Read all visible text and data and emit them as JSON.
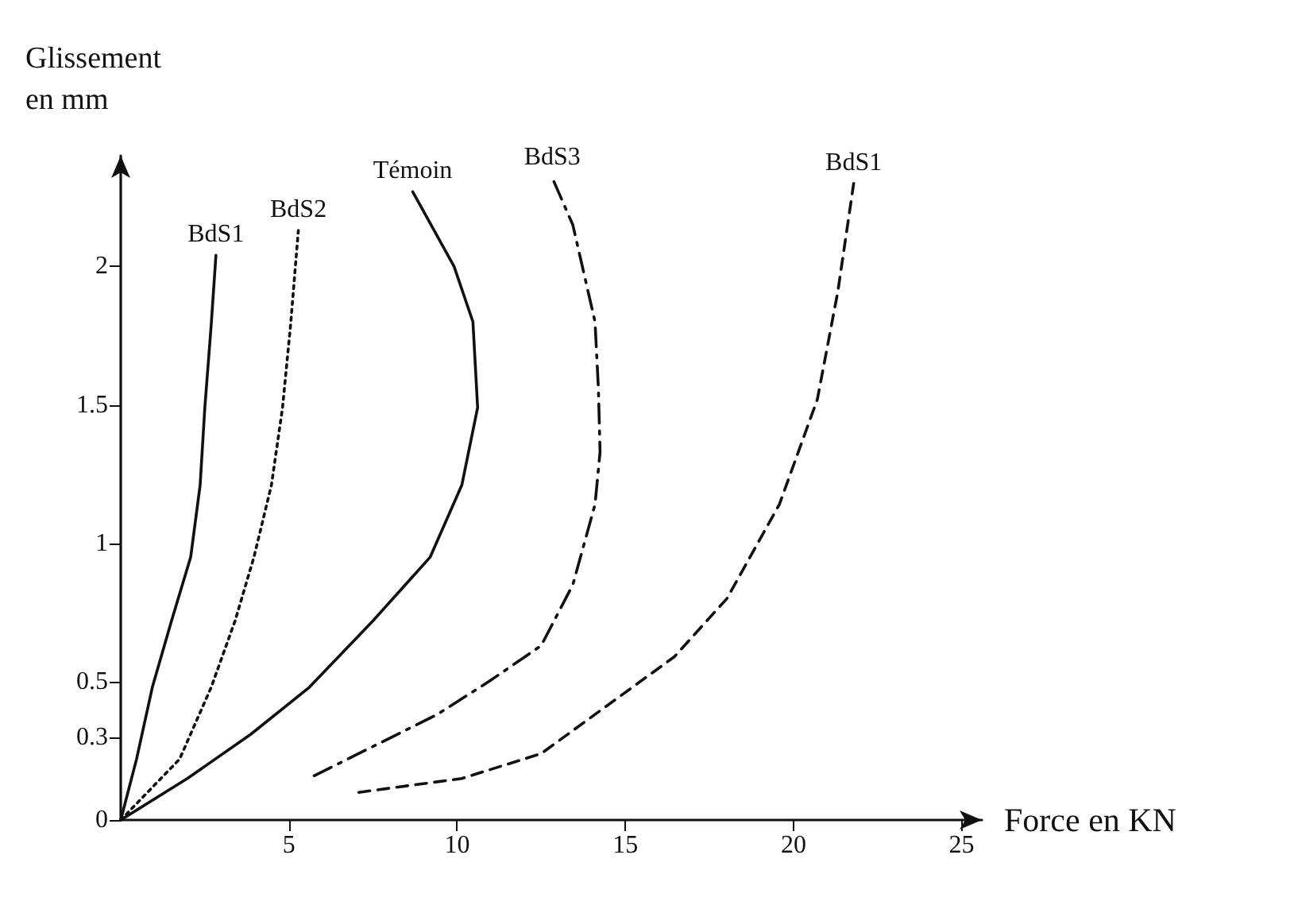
{
  "chart_data": {
    "type": "line",
    "xlabel": "Force en KN",
    "ylabel": "Glissement\nen mm",
    "xlim": [
      0,
      25.6
    ],
    "xticks": [
      5,
      10,
      15,
      20,
      25
    ],
    "ylim": [
      0,
      2.4
    ],
    "yticks": [
      0,
      0.3,
      0.5,
      1,
      1.5,
      2
    ],
    "grid": false,
    "legend": false,
    "marker": "none",
    "series": [
      {
        "name": "BdS1",
        "color": "#111111",
        "line_style": "solid",
        "x": [
          0,
          0.47,
          0.94,
          1.51,
          2.08,
          2.36,
          2.5,
          2.69,
          2.83
        ],
        "values": [
          0,
          0.22,
          0.48,
          0.72,
          0.95,
          1.21,
          1.49,
          1.79,
          2.04
        ]
      },
      {
        "name": "BdS2",
        "color": "#111111",
        "line_style": "dotted",
        "x": [
          0,
          1.75,
          2.69,
          3.4,
          3.96,
          4.48,
          4.81,
          5.05,
          5.28
        ],
        "values": [
          0,
          0.22,
          0.48,
          0.72,
          0.95,
          1.21,
          1.49,
          1.79,
          2.13
        ]
      },
      {
        "name": "Témoin",
        "color": "#111111",
        "line_style": "solid",
        "x": [
          0,
          1.98,
          3.87,
          5.61,
          7.5,
          9.2,
          10.14,
          10.61,
          10.47,
          9.91,
          8.68
        ],
        "values": [
          0,
          0.15,
          0.31,
          0.48,
          0.72,
          0.95,
          1.21,
          1.49,
          1.8,
          2.0,
          2.27
        ]
      },
      {
        "name": "BdS3",
        "color": "#111111",
        "line_style": "dashdot",
        "x": [
          5.75,
          9.39,
          10.94,
          12.5,
          13.44,
          14.1,
          14.25,
          14.2,
          14.1,
          13.44,
          12.83
        ],
        "values": [
          0.16,
          0.38,
          0.5,
          0.63,
          0.85,
          1.14,
          1.33,
          1.56,
          1.8,
          2.15,
          2.32
        ]
      },
      {
        "name": "BdS1",
        "color": "#111111",
        "line_style": "dashed",
        "x": [
          7.08,
          10.14,
          12.5,
          16.46,
          18.02,
          19.58,
          20.71,
          21.32,
          21.79
        ],
        "values": [
          0.1,
          0.15,
          0.24,
          0.59,
          0.8,
          1.14,
          1.52,
          1.91,
          2.3
        ]
      }
    ]
  }
}
